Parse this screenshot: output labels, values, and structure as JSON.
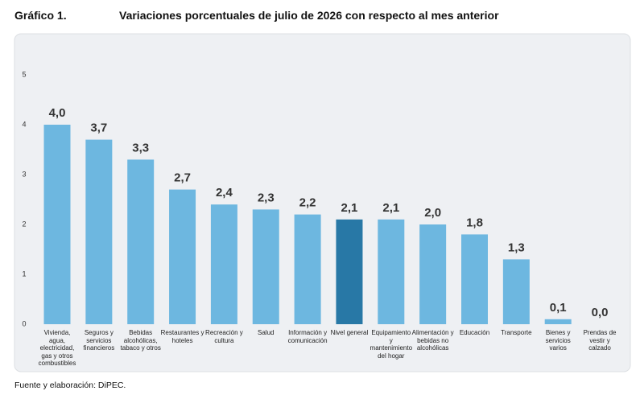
{
  "chart_data": {
    "type": "bar",
    "figure_label": "Gráfico 1.",
    "title": "Variaciones porcentuales de julio de 2026 con respecto al mes anterior",
    "source": "Fuente y elaboración: DiPEC.",
    "categories": [
      "Vivienda, agua, electricidad, gas y otros combustibles",
      "Seguros y servicios financieros",
      "Bebidas alcohólicas, tabaco y otros",
      "Restaurantes y hoteles",
      "Recreación y cultura",
      "Salud",
      "Información y comunicación",
      "Nivel general",
      "Equipamiento y mantenimiento del hogar",
      "Alimentación y bebidas no alcohólicas",
      "Educación",
      "Transporte",
      "Bienes y servicios varios",
      "Prendas de vestir y calzado"
    ],
    "values": [
      4.0,
      3.7,
      3.3,
      2.7,
      2.4,
      2.3,
      2.2,
      2.1,
      2.1,
      2.0,
      1.8,
      1.3,
      0.1,
      0.0
    ],
    "value_labels": [
      "4,0",
      "3,7",
      "3,3",
      "2,7",
      "2,4",
      "2,3",
      "2,2",
      "2,1",
      "2,1",
      "2,0",
      "1,8",
      "1,3",
      "0,1",
      "0,0"
    ],
    "colors": [
      "#6db7e0",
      "#6db7e0",
      "#6db7e0",
      "#6db7e0",
      "#6db7e0",
      "#6db7e0",
      "#6db7e0",
      "#2878a6",
      "#6db7e0",
      "#6db7e0",
      "#6db7e0",
      "#6db7e0",
      "#6db7e0",
      "#6db7e0"
    ],
    "ylim": [
      0,
      5
    ],
    "yticks": [
      0,
      1,
      2,
      3,
      4,
      5
    ],
    "grid": false
  }
}
